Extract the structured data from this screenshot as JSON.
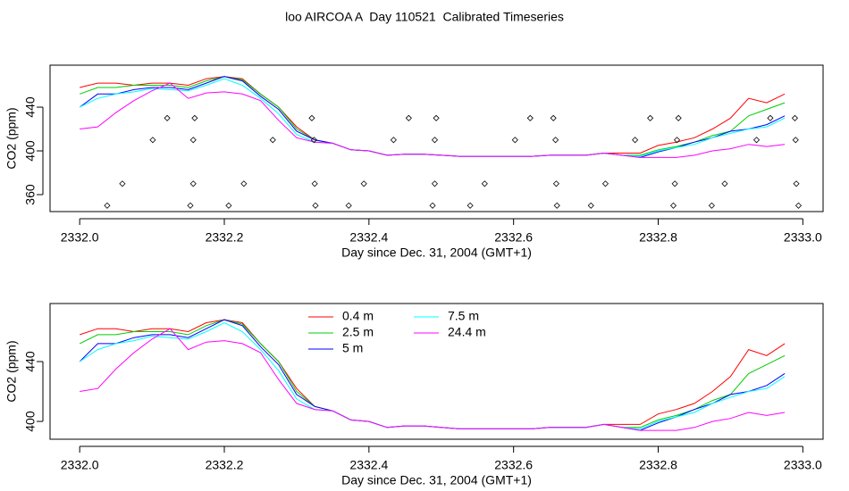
{
  "title": "loo AIRCOA A  Day 110521  Calibrated Timeseries",
  "chart_data": [
    {
      "type": "line",
      "xlabel": "Day since Dec. 31, 2004 (GMT+1)",
      "ylabel": "CO2 (ppm)",
      "xlim": [
        2331.959,
        2333.028
      ],
      "ylim": [
        344.5,
        478.4
      ],
      "xticks": [
        {
          "value": 2332.0,
          "label": "2332.0"
        },
        2332.2,
        2332.4,
        2332.6,
        2332.8,
        {
          "value": 2333.0,
          "label": "2333.0"
        }
      ],
      "yticks": [
        360,
        400,
        440
      ],
      "x": [
        2332.0,
        2332.025,
        2332.05,
        2332.075,
        2332.1,
        2332.125,
        2332.15,
        2332.175,
        2332.2,
        2332.225,
        2332.25,
        2332.275,
        2332.3,
        2332.325,
        2332.35,
        2332.375,
        2332.4,
        2332.425,
        2332.45,
        2332.475,
        2332.5,
        2332.525,
        2332.55,
        2332.575,
        2332.6,
        2332.625,
        2332.65,
        2332.675,
        2332.7,
        2332.725,
        2332.75,
        2332.775,
        2332.8,
        2332.825,
        2332.85,
        2332.875,
        2332.9,
        2332.925,
        2332.95,
        2332.975
      ],
      "series": [
        {
          "name": "0.4 m",
          "color": "#ff0000",
          "values": [
            458,
            462,
            462,
            460,
            462,
            462,
            460,
            466,
            468,
            466,
            452,
            440,
            422,
            410,
            407,
            401,
            400,
            396,
            397,
            397,
            396,
            395,
            395,
            395,
            395,
            395,
            396,
            396,
            396,
            398,
            398,
            398,
            405,
            408,
            412,
            420,
            430,
            448,
            444,
            452
          ]
        },
        {
          "name": "2.5 m",
          "color": "#00cd00",
          "values": [
            452,
            458,
            458,
            460,
            460,
            460,
            458,
            464,
            468,
            465,
            452,
            440,
            420,
            410,
            407,
            401,
            400,
            396,
            397,
            397,
            396,
            395,
            395,
            395,
            395,
            395,
            396,
            396,
            396,
            398,
            396,
            396,
            401,
            404,
            408,
            414,
            418,
            432,
            438,
            444
          ]
        },
        {
          "name": "5 m",
          "color": "#0000ff",
          "values": [
            440,
            452,
            452,
            456,
            458,
            458,
            456,
            462,
            468,
            464,
            450,
            438,
            418,
            410,
            407,
            401,
            400,
            396,
            397,
            397,
            396,
            395,
            395,
            395,
            395,
            395,
            396,
            396,
            396,
            398,
            396,
            394,
            399,
            403,
            408,
            412,
            418,
            420,
            424,
            432
          ]
        },
        {
          "name": "7.5 m",
          "color": "#00ffff",
          "values": [
            440,
            448,
            452,
            454,
            457,
            456,
            455,
            460,
            466,
            460,
            448,
            434,
            415,
            408,
            407,
            401,
            400,
            396,
            397,
            397,
            396,
            395,
            395,
            395,
            395,
            395,
            396,
            396,
            396,
            398,
            396,
            395,
            400,
            403,
            406,
            412,
            416,
            420,
            422,
            430
          ]
        },
        {
          "name": "24.4 m",
          "color": "#ff00ff",
          "values": [
            420,
            422,
            435,
            446,
            455,
            462,
            448,
            453,
            454,
            452,
            446,
            428,
            412,
            408,
            407,
            401,
            400,
            396,
            397,
            397,
            396,
            395,
            395,
            395,
            395,
            395,
            396,
            396,
            396,
            398,
            396,
            394,
            394,
            394,
            396,
            400,
            402,
            406,
            404,
            406
          ]
        }
      ],
      "points": {
        "color": "#000000",
        "x": [
          2332.121,
          2332.159,
          2332.321,
          2332.455,
          2332.493,
          2332.623,
          2332.655,
          2332.789,
          2332.828,
          2332.955,
          2332.989,
          2332.101,
          2332.157,
          2332.267,
          2332.324,
          2332.434,
          2332.491,
          2332.602,
          2332.658,
          2332.768,
          2332.826,
          2332.936,
          2332.99,
          2332.059,
          2332.157,
          2332.227,
          2332.325,
          2332.393,
          2332.491,
          2332.56,
          2332.659,
          2332.727,
          2332.823,
          2332.892,
          2332.991,
          2332.038,
          2332.153,
          2332.206,
          2332.326,
          2332.372,
          2332.488,
          2332.54,
          2332.66,
          2332.707,
          2332.821,
          2332.874,
          2332.994
        ],
        "y": [
          430,
          430,
          430,
          430,
          430,
          430,
          430,
          430,
          430,
          430,
          430,
          410,
          410,
          410,
          410,
          410,
          410,
          410,
          410,
          410,
          410,
          410,
          410,
          370,
          370,
          370,
          370,
          370,
          370,
          370,
          370,
          370,
          370,
          370,
          370,
          350,
          350,
          350,
          350,
          350,
          350,
          350,
          350,
          350,
          350,
          350,
          350
        ]
      }
    },
    {
      "type": "line",
      "xlabel": "Day since Dec. 31, 2004 (GMT+1)",
      "ylabel": "CO2 (ppm)",
      "xlim": [
        2331.959,
        2333.028
      ],
      "ylim": [
        388.1,
        478.8
      ],
      "xticks": [
        {
          "value": 2332.0,
          "label": "2332.0"
        },
        2332.2,
        2332.4,
        2332.6,
        2332.8,
        {
          "value": 2333.0,
          "label": "2333.0"
        }
      ],
      "yticks": [
        400,
        440
      ],
      "legend": "top-center",
      "x": [
        2332.0,
        2332.025,
        2332.05,
        2332.075,
        2332.1,
        2332.125,
        2332.15,
        2332.175,
        2332.2,
        2332.225,
        2332.25,
        2332.275,
        2332.3,
        2332.325,
        2332.35,
        2332.375,
        2332.4,
        2332.425,
        2332.45,
        2332.475,
        2332.5,
        2332.525,
        2332.55,
        2332.575,
        2332.6,
        2332.625,
        2332.65,
        2332.675,
        2332.7,
        2332.725,
        2332.75,
        2332.775,
        2332.8,
        2332.825,
        2332.85,
        2332.875,
        2332.9,
        2332.925,
        2332.95,
        2332.975
      ],
      "series": [
        {
          "name": "0.4 m",
          "color": "#ff0000",
          "values": [
            458,
            462,
            462,
            460,
            462,
            462,
            460,
            466,
            468,
            466,
            452,
            440,
            422,
            410,
            407,
            401,
            400,
            396,
            397,
            397,
            396,
            395,
            395,
            395,
            395,
            395,
            396,
            396,
            396,
            398,
            398,
            398,
            405,
            408,
            412,
            420,
            430,
            448,
            444,
            452
          ]
        },
        {
          "name": "2.5 m",
          "color": "#00cd00",
          "values": [
            452,
            458,
            458,
            460,
            460,
            460,
            458,
            464,
            468,
            465,
            452,
            440,
            420,
            410,
            407,
            401,
            400,
            396,
            397,
            397,
            396,
            395,
            395,
            395,
            395,
            395,
            396,
            396,
            396,
            398,
            396,
            396,
            401,
            404,
            408,
            414,
            418,
            432,
            438,
            444
          ]
        },
        {
          "name": "5 m",
          "color": "#0000ff",
          "values": [
            440,
            452,
            452,
            456,
            458,
            458,
            456,
            462,
            468,
            464,
            450,
            438,
            418,
            410,
            407,
            401,
            400,
            396,
            397,
            397,
            396,
            395,
            395,
            395,
            395,
            395,
            396,
            396,
            396,
            398,
            396,
            394,
            399,
            403,
            408,
            412,
            418,
            420,
            424,
            432
          ]
        },
        {
          "name": "7.5 m",
          "color": "#00ffff",
          "values": [
            440,
            448,
            452,
            454,
            457,
            456,
            455,
            460,
            466,
            460,
            448,
            434,
            415,
            408,
            407,
            401,
            400,
            396,
            397,
            397,
            396,
            395,
            395,
            395,
            395,
            395,
            396,
            396,
            396,
            398,
            396,
            395,
            400,
            403,
            406,
            412,
            416,
            420,
            422,
            430
          ]
        },
        {
          "name": "24.4 m",
          "color": "#ff00ff",
          "values": [
            420,
            422,
            435,
            446,
            455,
            462,
            448,
            453,
            454,
            452,
            446,
            428,
            412,
            408,
            407,
            401,
            400,
            396,
            397,
            397,
            396,
            395,
            395,
            395,
            395,
            395,
            396,
            396,
            396,
            398,
            396,
            394,
            394,
            394,
            396,
            400,
            402,
            406,
            404,
            406
          ]
        }
      ]
    }
  ]
}
